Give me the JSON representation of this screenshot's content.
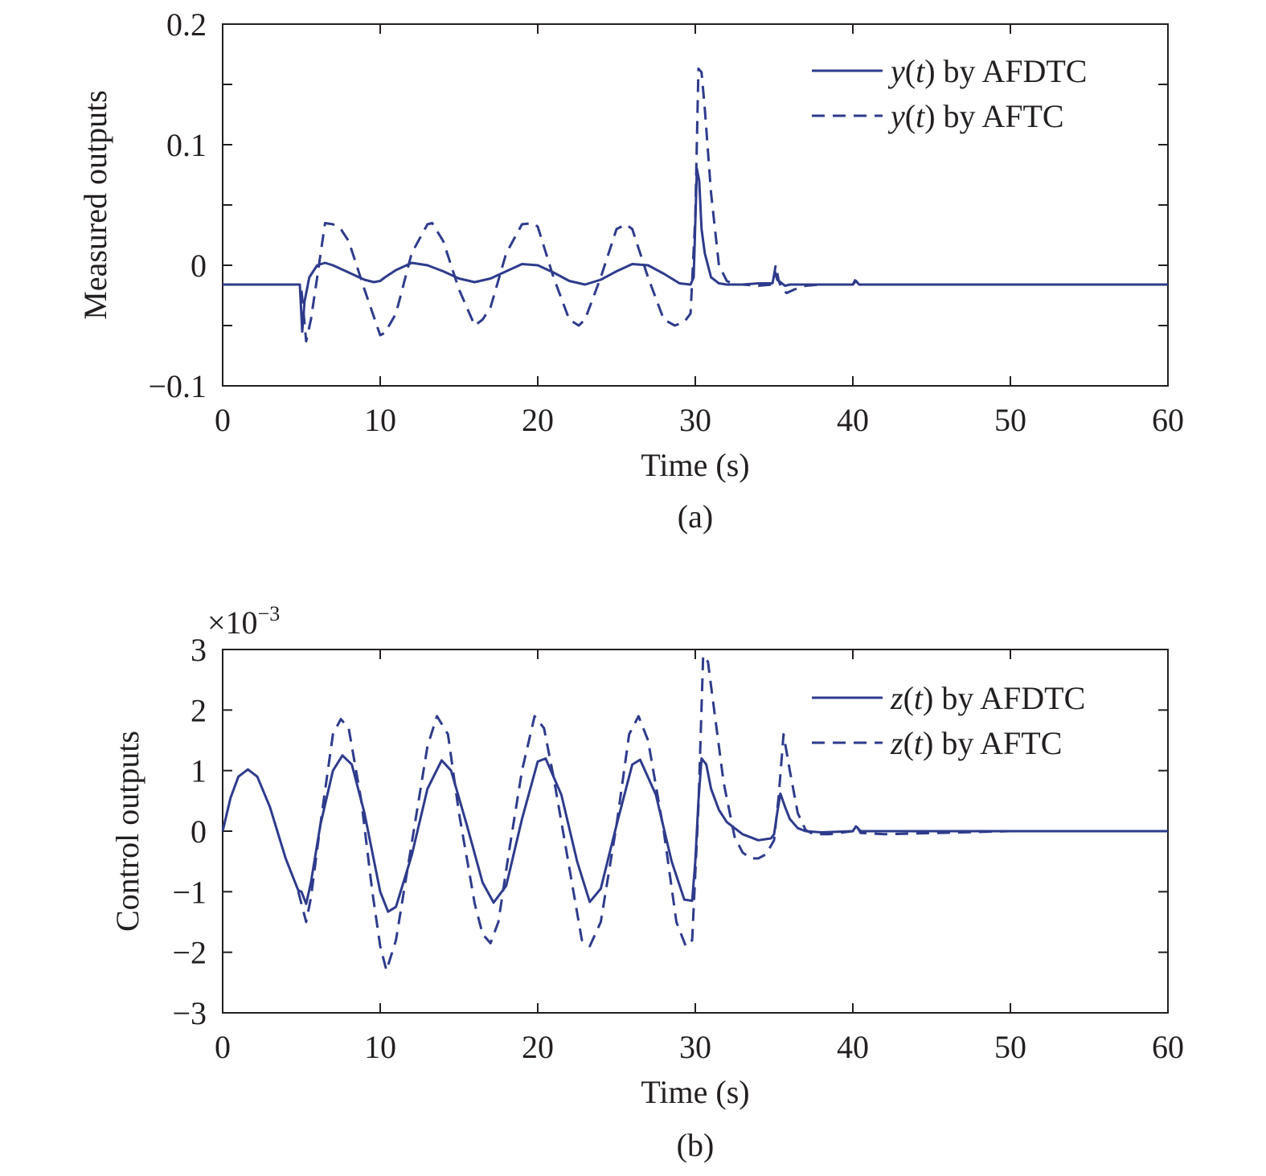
{
  "colors": {
    "series": "#2e3b8c",
    "axis": "#231f20"
  },
  "chart_data": [
    {
      "type": "line",
      "caption": "(a)",
      "xlabel": "Time (s)",
      "ylabel": "Measured outputs",
      "xlim": [
        0,
        60
      ],
      "ylim": [
        -0.1,
        0.2
      ],
      "xticks": [
        0,
        10,
        20,
        30,
        40,
        50,
        60
      ],
      "xtick_labels": [
        "0",
        "10",
        "20",
        "30",
        "40",
        "50",
        "60"
      ],
      "yticks": [
        -0.1,
        -0.05,
        0,
        0.05,
        0.1,
        0.15,
        0.2
      ],
      "ytick_labels": [
        "−0.1",
        "",
        "0",
        "",
        "0.1",
        "",
        "0.2"
      ],
      "grid": false,
      "legend_position": "top-right",
      "series": [
        {
          "name": "y(t) by AFDTC",
          "legend_parts": [
            {
              "t": "y",
              "i": true
            },
            {
              "t": "(",
              "i": false
            },
            {
              "t": "t",
              "i": true
            },
            {
              "t": ") by AFDTC",
              "i": false
            }
          ],
          "style": "solid",
          "x": [
            0,
            4.9,
            5.05,
            5.2,
            5.5,
            6,
            6.5,
            7,
            8,
            9,
            9.6,
            10,
            10.3,
            11,
            12,
            13,
            14,
            15,
            16,
            17,
            18,
            19,
            20,
            21,
            22,
            23,
            24,
            25,
            26,
            27,
            28,
            29,
            29.7,
            29.9,
            30.1,
            30.25,
            30.4,
            30.6,
            30.8,
            31,
            31.5,
            32,
            33,
            34,
            34.9,
            35.05,
            35.2,
            35.4,
            35.7,
            36,
            37,
            38,
            40,
            40.2,
            40.4,
            42,
            50,
            60
          ],
          "y": [
            -0.016,
            -0.016,
            -0.055,
            -0.03,
            -0.01,
            0.0,
            0.002,
            0.0,
            -0.006,
            -0.012,
            -0.014,
            -0.013,
            -0.01,
            -0.004,
            0.002,
            0.0,
            -0.005,
            -0.011,
            -0.014,
            -0.011,
            -0.005,
            0.001,
            0.0,
            -0.006,
            -0.013,
            -0.016,
            -0.012,
            -0.005,
            0.001,
            0.0,
            -0.007,
            -0.015,
            -0.016,
            -0.01,
            0.08,
            0.07,
            0.03,
            0.01,
            0.0,
            -0.01,
            -0.015,
            -0.016,
            -0.016,
            -0.015,
            -0.015,
            -0.005,
            -0.012,
            -0.014,
            -0.017,
            -0.016,
            -0.016,
            -0.016,
            -0.016,
            -0.013,
            -0.016,
            -0.016,
            -0.016,
            -0.016
          ]
        },
        {
          "name": "y(t) by AFTC",
          "legend_parts": [
            {
              "t": "y",
              "i": true
            },
            {
              "t": "(",
              "i": false
            },
            {
              "t": "t",
              "i": true
            },
            {
              "t": ") by AFTC",
              "i": false
            }
          ],
          "style": "dashed",
          "x": [
            0,
            4.9,
            5.0,
            5.3,
            5.6,
            6,
            6.5,
            7,
            7.5,
            8,
            9,
            10,
            10.3,
            11,
            12,
            13,
            13.3,
            14,
            15,
            16,
            16.5,
            17,
            18,
            19,
            19.7,
            20,
            21,
            22,
            22.6,
            23,
            24,
            25,
            25.6,
            26,
            27,
            28,
            28.7,
            29.3,
            29.7,
            30,
            30.2,
            30.4,
            30.6,
            31,
            31.5,
            32,
            32.5,
            33,
            34,
            34.9,
            35.1,
            35.3,
            35.5,
            35.8,
            36.3,
            37,
            38,
            40,
            40.2,
            40.4,
            42,
            50,
            60
          ],
          "y": [
            -0.016,
            -0.016,
            -0.02,
            -0.063,
            -0.045,
            -0.01,
            0.035,
            0.034,
            0.03,
            0.02,
            -0.02,
            -0.058,
            -0.056,
            -0.04,
            0.01,
            0.034,
            0.035,
            0.02,
            -0.02,
            -0.05,
            -0.045,
            -0.035,
            0.01,
            0.034,
            0.035,
            0.032,
            -0.01,
            -0.045,
            -0.05,
            -0.045,
            -0.01,
            0.03,
            0.034,
            0.03,
            -0.01,
            -0.045,
            -0.05,
            -0.047,
            -0.04,
            0.04,
            0.163,
            0.16,
            0.13,
            0.06,
            0.0,
            -0.013,
            -0.016,
            -0.016,
            -0.017,
            -0.016,
            0.0,
            -0.013,
            -0.02,
            -0.023,
            -0.02,
            -0.017,
            -0.016,
            -0.016,
            -0.011,
            -0.016,
            -0.016,
            -0.016,
            -0.016
          ]
        }
      ]
    },
    {
      "type": "line",
      "caption": "(b)",
      "xlabel": "Time (s)",
      "ylabel": "Control outputs",
      "scale_multiplier_base": "×10",
      "scale_multiplier_exp": "−3",
      "xlim": [
        0,
        60
      ],
      "ylim": [
        -3,
        3
      ],
      "xticks": [
        0,
        10,
        20,
        30,
        40,
        50,
        60
      ],
      "xtick_labels": [
        "0",
        "10",
        "20",
        "30",
        "40",
        "50",
        "60"
      ],
      "yticks": [
        -3,
        -2,
        -1,
        0,
        1,
        2,
        3
      ],
      "ytick_labels": [
        "−3",
        "−2",
        "−1",
        "0",
        "1",
        "2",
        "3"
      ],
      "grid": false,
      "legend_position": "top-right",
      "series": [
        {
          "name": "z(t) by AFDTC",
          "legend_parts": [
            {
              "t": "z",
              "i": true
            },
            {
              "t": "(",
              "i": false
            },
            {
              "t": "t",
              "i": true
            },
            {
              "t": ") by AFDTC",
              "i": false
            }
          ],
          "style": "solid",
          "x": [
            0,
            0.5,
            1,
            1.6,
            2.2,
            3,
            4,
            4.8,
            5.0,
            5.3,
            5.6,
            6.2,
            7,
            7.6,
            8.2,
            9,
            10,
            10.5,
            11,
            12,
            13,
            13.9,
            14.5,
            15.5,
            16.5,
            17.2,
            18,
            19,
            20,
            20.5,
            21.5,
            22.5,
            23.3,
            24,
            25,
            26,
            26.5,
            27.5,
            28.5,
            29.3,
            29.8,
            30.0,
            30.2,
            30.4,
            30.7,
            31,
            31.5,
            32,
            33,
            34,
            34.8,
            35.0,
            35.2,
            35.4,
            35.7,
            36,
            36.5,
            37,
            38,
            40,
            40.2,
            40.5,
            42,
            50,
            60
          ],
          "y": [
            0,
            0.55,
            0.9,
            1.02,
            0.9,
            0.4,
            -0.45,
            -0.98,
            -1.0,
            -1.2,
            -0.85,
            0.1,
            1.0,
            1.25,
            1.1,
            0.3,
            -1.0,
            -1.33,
            -1.25,
            -0.4,
            0.7,
            1.17,
            1.0,
            0.1,
            -0.85,
            -1.18,
            -0.9,
            0.2,
            1.15,
            1.2,
            0.6,
            -0.5,
            -1.17,
            -0.95,
            0.1,
            1.1,
            1.18,
            0.6,
            -0.5,
            -1.13,
            -1.15,
            -0.5,
            0.5,
            1.2,
            1.1,
            0.7,
            0.35,
            0.15,
            -0.05,
            -0.15,
            -0.12,
            -0.05,
            0.3,
            0.62,
            0.4,
            0.2,
            0.05,
            0.0,
            -0.02,
            0.0,
            0.08,
            0.0,
            0.0,
            0.0,
            0.0
          ]
        },
        {
          "name": "z(t) by AFTC",
          "legend_parts": [
            {
              "t": "z",
              "i": true
            },
            {
              "t": "(",
              "i": false
            },
            {
              "t": "t",
              "i": true
            },
            {
              "t": ") by AFTC",
              "i": false
            }
          ],
          "style": "dashed",
          "x": [
            4.8,
            5.3,
            5.6,
            6.3,
            7,
            7.5,
            8,
            8.8,
            9.5,
            10,
            10.4,
            11,
            12,
            13,
            13.6,
            14.3,
            15,
            16,
            16.5,
            17,
            17.5,
            18.2,
            19,
            19.8,
            20.4,
            21,
            22,
            22.8,
            23.3,
            24,
            25,
            25.8,
            26.4,
            27,
            28,
            28.8,
            29.4,
            29.8,
            30.2,
            30.5,
            30.8,
            31.2,
            31.8,
            32.5,
            33,
            33.5,
            34,
            34.5,
            35.0,
            35.3,
            35.6,
            36,
            36.5,
            37,
            37.5,
            38.5,
            40,
            40.2,
            40.5,
            42,
            50,
            60
          ],
          "y": [
            -1.0,
            -1.5,
            -1.1,
            0.3,
            1.6,
            1.85,
            1.7,
            0.5,
            -1.0,
            -1.9,
            -2.3,
            -1.8,
            -0.2,
            1.4,
            1.9,
            1.6,
            0.3,
            -1.2,
            -1.7,
            -1.85,
            -1.5,
            -0.3,
            1.0,
            1.9,
            1.7,
            0.9,
            -0.6,
            -1.8,
            -1.9,
            -1.5,
            0.1,
            1.6,
            1.9,
            1.5,
            0.0,
            -1.5,
            -1.9,
            -1.8,
            0.4,
            2.9,
            2.8,
            2.0,
            0.8,
            -0.1,
            -0.35,
            -0.45,
            -0.45,
            -0.38,
            -0.15,
            0.6,
            1.6,
            1.0,
            0.3,
            0.02,
            -0.05,
            -0.05,
            0.0,
            0.1,
            -0.03,
            -0.05,
            0.0,
            0.0
          ]
        }
      ]
    }
  ]
}
